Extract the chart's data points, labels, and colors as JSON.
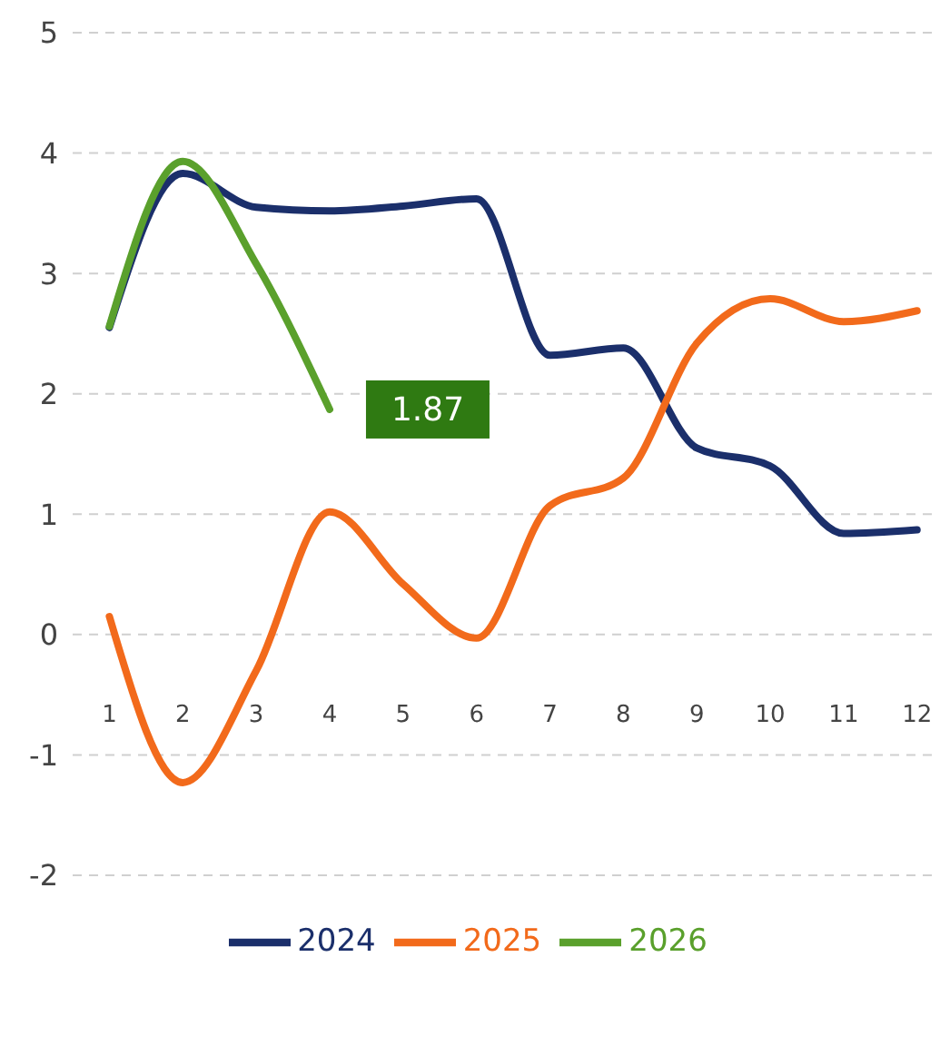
{
  "chart_data": {
    "type": "line",
    "x": [
      1,
      2,
      3,
      4,
      5,
      6,
      7,
      8,
      9,
      10,
      11,
      12
    ],
    "series": [
      {
        "name": "2024",
        "color": "#1b2f6b",
        "values": [
          2.55,
          3.83,
          3.55,
          3.52,
          3.56,
          3.62,
          2.32,
          2.38,
          1.55,
          1.4,
          0.84,
          0.87
        ]
      },
      {
        "name": "2025",
        "color": "#f26a1b",
        "values": [
          0.15,
          -1.23,
          -0.3,
          1.02,
          0.42,
          -0.03,
          1.07,
          1.3,
          2.42,
          2.79,
          2.6,
          2.69
        ]
      },
      {
        "name": "2026",
        "color": "#5aa02c",
        "values": [
          2.56,
          3.93,
          3.08,
          1.87,
          null,
          null,
          null,
          null,
          null,
          null,
          null,
          null
        ]
      }
    ],
    "annotations": [
      {
        "text": "1.87",
        "x": 4,
        "y": 1.87
      }
    ],
    "xlim": [
      0.5,
      12.3
    ],
    "xticks": [
      1,
      2,
      3,
      4,
      5,
      6,
      7,
      8,
      9,
      10,
      11,
      12
    ],
    "ylim": [
      -2,
      5
    ],
    "yticks": [
      -2,
      -1,
      0,
      1,
      2,
      3,
      4,
      5
    ],
    "grid": "y",
    "legend": "bottom",
    "line_style": "solid"
  }
}
